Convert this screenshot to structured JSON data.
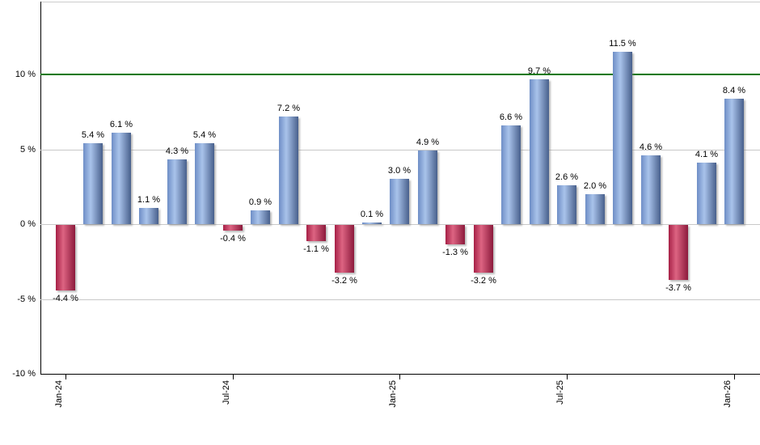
{
  "chart_data": {
    "type": "bar",
    "title": "",
    "values": [
      -4.4,
      5.4,
      6.1,
      1.1,
      4.3,
      5.4,
      -0.4,
      0.9,
      7.2,
      -1.1,
      -3.2,
      0.1,
      3.0,
      4.9,
      -1.3,
      -3.2,
      6.6,
      9.7,
      2.6,
      2.0,
      11.5,
      4.6,
      -3.7,
      4.1,
      8.4
    ],
    "bar_labels": [
      "-4.4 %",
      "5.4 %",
      "6.1 %",
      "1.1 %",
      "4.3 %",
      "5.4 %",
      "-0.4 %",
      "0.9 %",
      "7.2 %",
      "-1.1 %",
      "-3.2 %",
      "0.1 %",
      "3.0 %",
      "4.9 %",
      "-1.3 %",
      "-3.2 %",
      "6.6 %",
      "9.7 %",
      "2.6 %",
      "2.0 %",
      "11.5 %",
      "4.6 %",
      "-3.7 %",
      "4.1 %",
      "8.4 %"
    ],
    "x_axis": {
      "tick_labels": [
        "Jan-24",
        "Jul-24",
        "Jan-25",
        "Jul-25",
        "Jan-26"
      ],
      "tick_indices": [
        0,
        6,
        12,
        18,
        24
      ]
    },
    "y_axis": {
      "tick_labels": [
        "10 %",
        "5 %",
        "0 %",
        "-5 %",
        "-10 %"
      ],
      "tick_values": [
        10,
        5,
        0,
        -5,
        -10
      ],
      "range": [
        -10,
        14.9
      ]
    },
    "gridline_values": [
      5,
      0,
      -5
    ],
    "reference_line": {
      "value": 10,
      "color": "#067806"
    },
    "colors": {
      "positive_edge_left": "#6e8ec6",
      "positive_highlight": "#a9c3eb",
      "positive_edge_right": "#48608c",
      "negative_edge_left": "#a62046",
      "negative_highlight": "#dd6482",
      "negative_edge_right": "#8c1a3c",
      "gridline": "#c8c8c8",
      "axis": "#000000",
      "background": "#ffffff"
    },
    "legend": null
  }
}
